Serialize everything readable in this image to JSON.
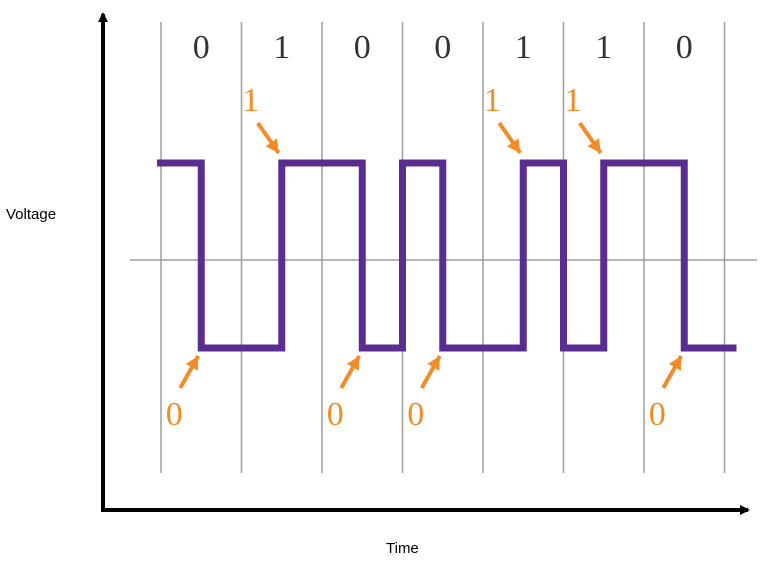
{
  "diagram": {
    "y_axis_label": "Voltage",
    "x_axis_label": "Time",
    "bits": [
      "0",
      "1",
      "0",
      "0",
      "1",
      "1",
      "0"
    ],
    "markers": [
      {
        "label": "0",
        "level": "low",
        "slot": 0
      },
      {
        "label": "1",
        "level": "high",
        "slot": 1
      },
      {
        "label": "0",
        "level": "low",
        "slot": 2
      },
      {
        "label": "0",
        "level": "low",
        "slot": 3
      },
      {
        "label": "1",
        "level": "high",
        "slot": 4
      },
      {
        "label": "1",
        "level": "high",
        "slot": 5
      },
      {
        "label": "0",
        "level": "low",
        "slot": 6
      }
    ],
    "colors": {
      "signal": "#5c2d91",
      "marker": "#f28c28",
      "grid": "#9e9e9e",
      "axis": "#000000",
      "bit_text": "#333333"
    }
  }
}
